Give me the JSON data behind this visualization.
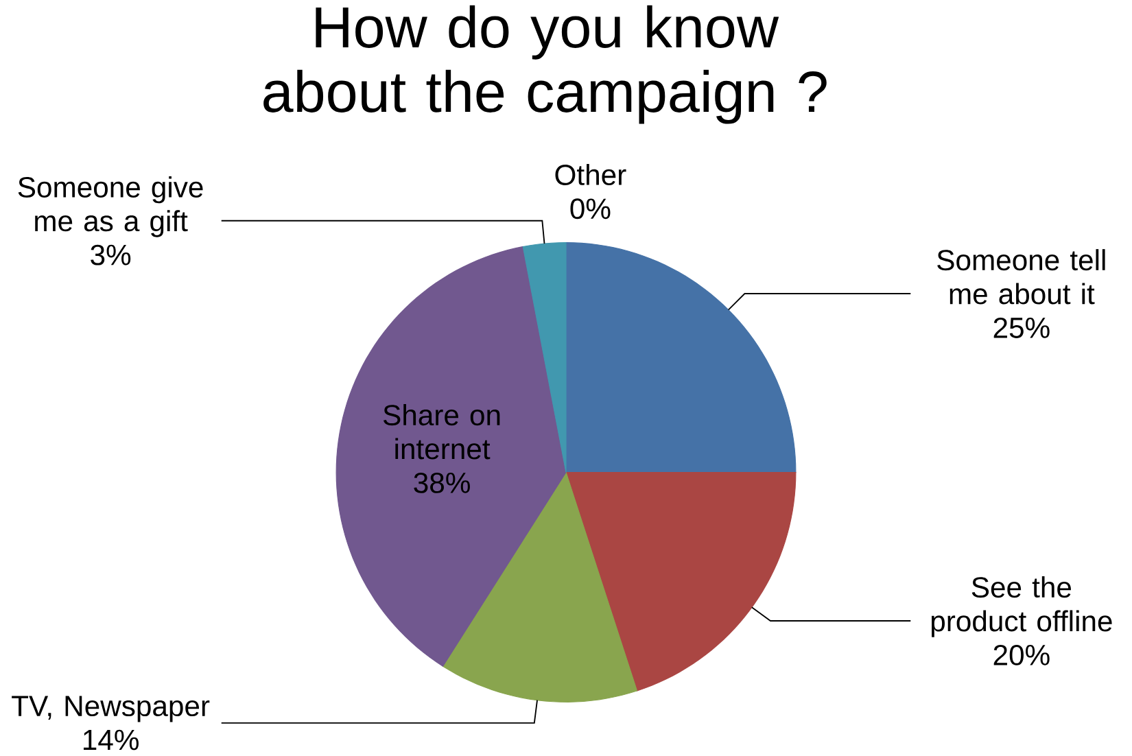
{
  "chart_data": {
    "type": "pie",
    "title": "How do you know about the campaign ?",
    "categories": [
      "Someone tell me about it",
      "See the product offline",
      "TV, Newspaper",
      "Share on internet",
      "Someone give me as a gift",
      "Other"
    ],
    "values": [
      25,
      20,
      14,
      38,
      3,
      0
    ],
    "colors": [
      "#4572a7",
      "#aa4643",
      "#89a54e",
      "#71588f",
      "#4198af",
      "#db843d"
    ],
    "value_labels": [
      "25%",
      "20%",
      "14%",
      "38%",
      "3%",
      "0%"
    ]
  }
}
